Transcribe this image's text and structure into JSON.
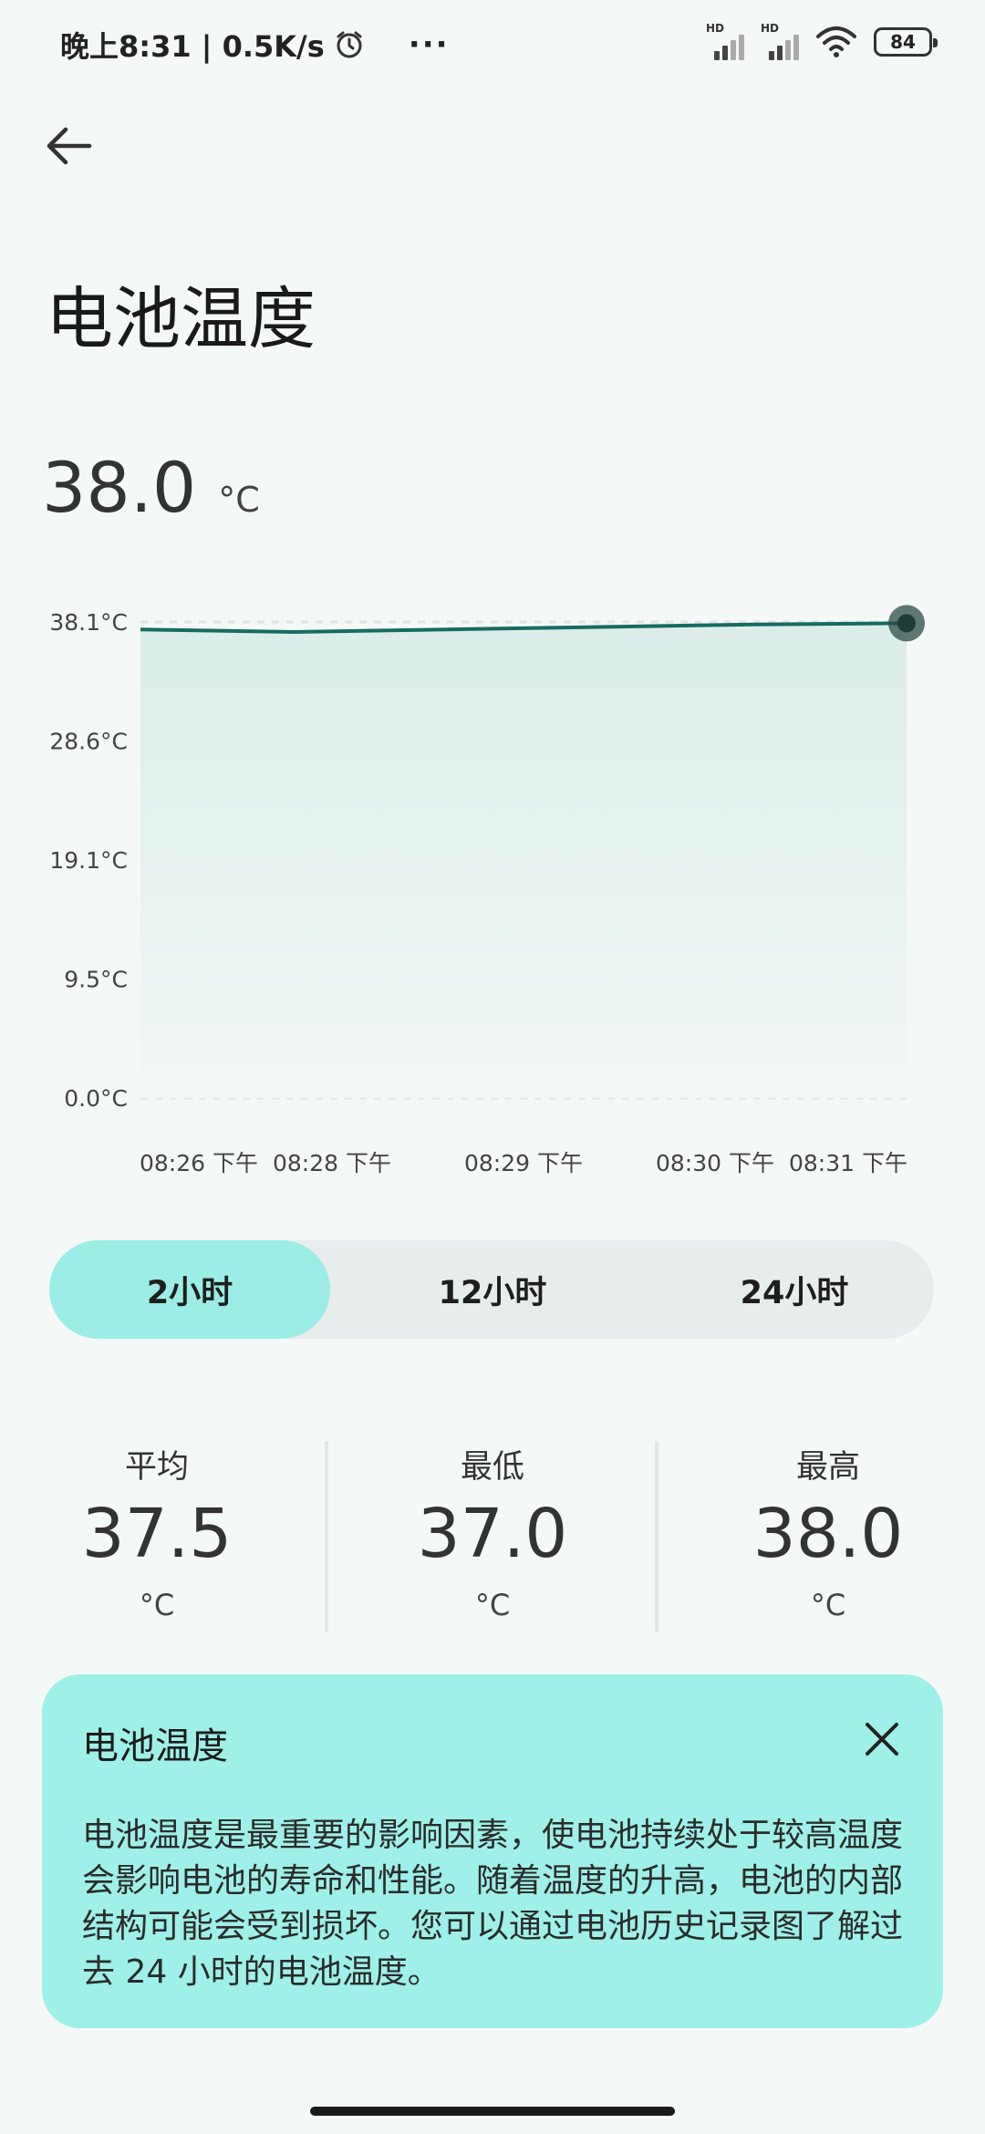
{
  "status_bar": {
    "time_speed": "晚上8:31 | 0.5K/s",
    "more": "···",
    "battery_level": "84"
  },
  "page": {
    "title": "电池温度",
    "current_value": "38.0",
    "current_unit": "°C"
  },
  "chart_data": {
    "type": "area",
    "y_ticks": [
      "38.1°C",
      "28.6°C",
      "19.1°C",
      "9.5°C",
      "0.0°C"
    ],
    "x_ticks": [
      "08:26 下午",
      "08:28 下午",
      "08:29 下午",
      "08:30 下午",
      "08:31 下午"
    ],
    "ylim": [
      0,
      38.1
    ],
    "series": [
      {
        "values": [
          37.5,
          37.3,
          37.5,
          37.7,
          37.9,
          38.0
        ]
      }
    ],
    "accent_color": "#176b63"
  },
  "range_tabs": [
    "2小时",
    "12小时",
    "24小时"
  ],
  "range_selected": 0,
  "stats": {
    "average": {
      "label": "平均",
      "value": "37.5",
      "unit": "°C"
    },
    "min": {
      "label": "最低",
      "value": "37.0",
      "unit": "°C"
    },
    "max": {
      "label": "最高",
      "value": "38.0",
      "unit": "°C"
    }
  },
  "info": {
    "title": "电池温度",
    "body": "电池温度是最重要的影响因素，使电池持续处于较高温度会影响电池的寿命和性能。随着温度的升高，电池的内部结构可能会受到损坏。您可以通过电池历史记录图了解过去 24 小时的电池温度。"
  }
}
